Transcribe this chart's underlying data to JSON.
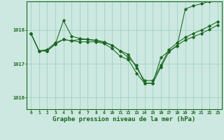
{
  "background_color": "#cce8e0",
  "grid_color": "#99ccbb",
  "line_color": "#1a6620",
  "marker_color": "#1a6620",
  "title": "Graphe pression niveau de la mer (hPa)",
  "title_fontsize": 6.5,
  "x_ticks": [
    0,
    1,
    2,
    3,
    4,
    5,
    6,
    7,
    8,
    9,
    10,
    11,
    12,
    13,
    14,
    15,
    16,
    17,
    18,
    19,
    20,
    21,
    22,
    23
  ],
  "ylim": [
    1015.65,
    1018.85
  ],
  "yticks": [
    1016,
    1017,
    1018
  ],
  "figsize": [
    3.2,
    2.0
  ],
  "dpi": 100,
  "s1": [
    1017.9,
    1017.38,
    1017.38,
    1017.58,
    1018.28,
    1017.82,
    1017.75,
    1017.72,
    1017.68,
    1017.63,
    1017.55,
    1017.38,
    1017.18,
    1016.95,
    1016.42,
    1016.42,
    1017.18,
    1017.38,
    1017.52,
    1018.62,
    1018.72,
    1018.78,
    1018.85,
    1018.92
  ],
  "s2": [
    1017.9,
    1017.38,
    1017.38,
    1017.58,
    1017.72,
    1017.68,
    1017.65,
    1017.65,
    1017.65,
    1017.6,
    1017.45,
    1017.22,
    1017.12,
    1016.72,
    1016.42,
    1016.42,
    1016.9,
    1017.35,
    1017.55,
    1017.7,
    1017.8,
    1017.9,
    1018.02,
    1018.15
  ],
  "s3_upper": [
    1017.9,
    1017.38,
    1017.42,
    1017.62,
    1017.72,
    1017.68,
    1017.72,
    1017.72,
    1017.7,
    1017.65,
    1017.55,
    1017.38,
    1017.28,
    1016.88,
    1016.5,
    1016.5,
    1016.95,
    1017.42,
    1017.62,
    1017.78,
    1017.9,
    1018.0,
    1018.12,
    1018.25
  ]
}
